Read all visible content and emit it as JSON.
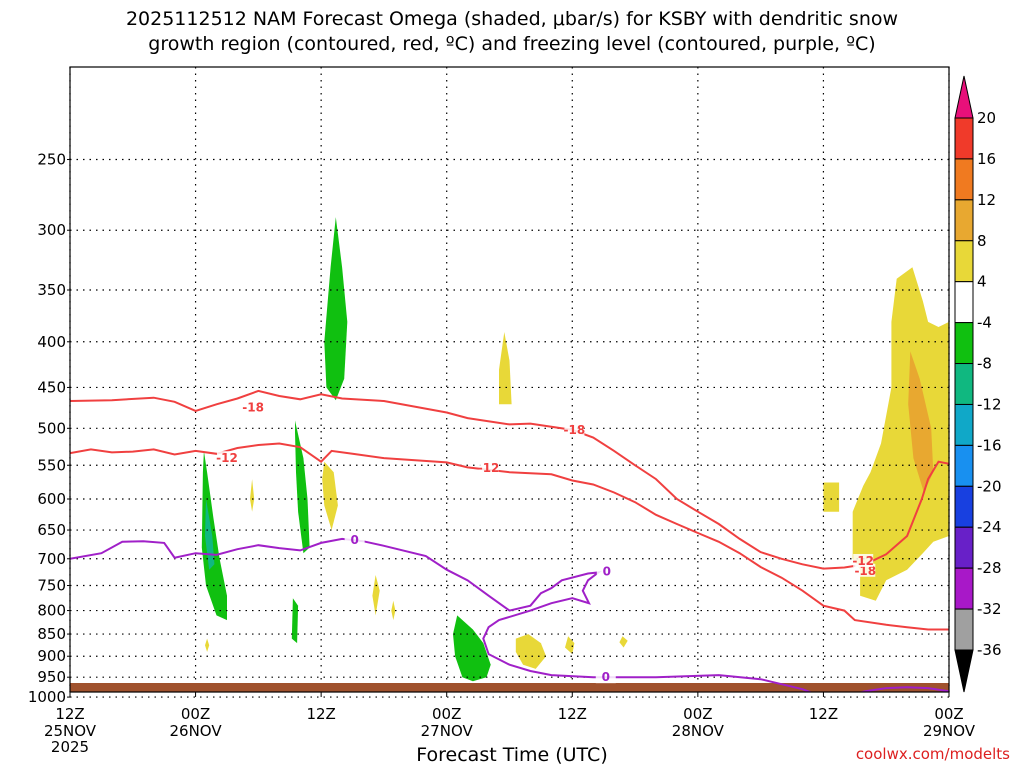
{
  "chart_data": {
    "type": "heatmap",
    "title_line1": "2025112512 NAM Forecast Omega (shaded, μbar/s) for KSBY with dendritic snow",
    "title_line2": "growth region (contoured, red, ºC) and freezing level (contoured, purple, ºC)",
    "xlabel": "Forecast Time (UTC)",
    "credit": "coolwx.com/modelts",
    "x_axis": {
      "unit": "hours since 2025-11-25 12Z",
      "range": [
        0,
        84
      ],
      "ticks": [
        {
          "hour": 0,
          "label1": "12Z",
          "label2": "25NOV",
          "label3": "2025"
        },
        {
          "hour": 12,
          "label1": "00Z",
          "label2": "26NOV"
        },
        {
          "hour": 24,
          "label1": "12Z",
          "label2": ""
        },
        {
          "hour": 36,
          "label1": "00Z",
          "label2": "27NOV"
        },
        {
          "hour": 48,
          "label1": "12Z",
          "label2": ""
        },
        {
          "hour": 60,
          "label1": "00Z",
          "label2": "28NOV"
        },
        {
          "hour": 72,
          "label1": "12Z",
          "label2": ""
        },
        {
          "hour": 84,
          "label1": "00Z",
          "label2": "29NOV"
        }
      ]
    },
    "y_axis": {
      "unit": "hPa",
      "ticks": [
        "250",
        "300",
        "350",
        "400",
        "450",
        "500",
        "550",
        "600",
        "650",
        "700",
        "750",
        "800",
        "850",
        "900",
        "950",
        "1000"
      ],
      "grid": "dotted"
    },
    "colorbar": {
      "labels": [
        "20",
        "16",
        "12",
        "8",
        "4",
        "-4",
        "-8",
        "-12",
        "-16",
        "-20",
        "-24",
        "-28",
        "-32",
        "-36"
      ],
      "colors": [
        "#e8107a",
        "#f03a2a",
        "#f07a20",
        "#e8a830",
        "#e8d838",
        "#ffffff",
        "#10c010",
        "#10b880",
        "#10a8c8",
        "#1890f0",
        "#1840e0",
        "#6820c8",
        "#a818c8",
        "#a0a0a0",
        "#000000"
      ]
    },
    "omega_regions": [
      {
        "color": "#10c010",
        "label": "upward motion -4 to -8",
        "points": [
          [
            25.4,
            290
          ],
          [
            26.0,
            330
          ],
          [
            26.5,
            380
          ],
          [
            26.2,
            440
          ],
          [
            25.4,
            465
          ],
          [
            24.5,
            450
          ],
          [
            24.3,
            400
          ],
          [
            24.9,
            330
          ]
        ]
      },
      {
        "color": "#10c010",
        "points": [
          [
            13.1,
            560
          ],
          [
            13.7,
            630
          ],
          [
            14.3,
            700
          ],
          [
            15.0,
            770
          ],
          [
            15.0,
            820
          ],
          [
            14.0,
            810
          ],
          [
            13.0,
            750
          ],
          [
            12.6,
            680
          ],
          [
            12.7,
            560
          ],
          [
            12.8,
            530
          ]
        ]
      },
      {
        "color": "#10b880",
        "points": [
          [
            13.0,
            600
          ],
          [
            13.6,
            660
          ],
          [
            13.8,
            710
          ],
          [
            13.3,
            720
          ],
          [
            12.9,
            660
          ]
        ]
      },
      {
        "color": "#10c010",
        "points": [
          [
            21.5,
            490
          ],
          [
            22.3,
            540
          ],
          [
            22.7,
            600
          ],
          [
            22.9,
            680
          ],
          [
            22.3,
            690
          ],
          [
            21.8,
            620
          ],
          [
            21.6,
            560
          ],
          [
            21.5,
            505
          ]
        ]
      },
      {
        "color": "#10c010",
        "points": [
          [
            21.3,
            775
          ],
          [
            21.8,
            790
          ],
          [
            21.7,
            870
          ],
          [
            21.2,
            860
          ]
        ]
      },
      {
        "color": "#10c010",
        "points": [
          [
            37.0,
            810
          ],
          [
            38.5,
            840
          ],
          [
            39.5,
            870
          ],
          [
            40.2,
            920
          ],
          [
            39.8,
            950
          ],
          [
            38.5,
            960
          ],
          [
            37.5,
            950
          ],
          [
            36.8,
            900
          ],
          [
            36.6,
            850
          ]
        ]
      },
      {
        "color": "#e8d838",
        "label": "sinking motion 4 to 8",
        "points": [
          [
            41.5,
            390
          ],
          [
            42.0,
            420
          ],
          [
            42.2,
            470
          ],
          [
            41.0,
            470
          ],
          [
            41.0,
            430
          ]
        ]
      },
      {
        "color": "#e8d838",
        "points": [
          [
            24.3,
            545
          ],
          [
            25.2,
            560
          ],
          [
            25.6,
            610
          ],
          [
            25.0,
            650
          ],
          [
            24.3,
            610
          ],
          [
            24.1,
            570
          ]
        ]
      },
      {
        "color": "#e8d838",
        "points": [
          [
            17.4,
            570
          ],
          [
            17.6,
            600
          ],
          [
            17.4,
            620
          ],
          [
            17.2,
            600
          ]
        ]
      },
      {
        "color": "#e8d838",
        "points": [
          [
            29.2,
            730
          ],
          [
            29.6,
            760
          ],
          [
            29.2,
            810
          ],
          [
            28.9,
            770
          ]
        ]
      },
      {
        "color": "#e8d838",
        "points": [
          [
            30.9,
            780
          ],
          [
            31.1,
            800
          ],
          [
            30.9,
            820
          ],
          [
            30.7,
            800
          ]
        ]
      },
      {
        "color": "#e8d838",
        "points": [
          [
            13.1,
            860
          ],
          [
            13.3,
            875
          ],
          [
            13.1,
            890
          ],
          [
            12.9,
            875
          ]
        ]
      },
      {
        "color": "#e8d838",
        "points": [
          [
            42.6,
            860
          ],
          [
            43.8,
            850
          ],
          [
            45.0,
            870
          ],
          [
            45.5,
            900
          ],
          [
            44.5,
            930
          ],
          [
            43.3,
            920
          ],
          [
            42.6,
            890
          ]
        ]
      },
      {
        "color": "#e8d838",
        "points": [
          [
            47.6,
            855
          ],
          [
            48.2,
            870
          ],
          [
            48.0,
            895
          ],
          [
            47.3,
            880
          ]
        ]
      },
      {
        "color": "#e8d838",
        "points": [
          [
            52.8,
            855
          ],
          [
            53.3,
            865
          ],
          [
            52.9,
            880
          ],
          [
            52.5,
            868
          ]
        ]
      },
      {
        "color": "#e8d838",
        "points": [
          [
            72.0,
            575
          ],
          [
            73.5,
            575
          ],
          [
            73.5,
            620
          ],
          [
            72.0,
            620
          ]
        ]
      },
      {
        "color": "#e8d838",
        "points": [
          [
            79.0,
            340
          ],
          [
            80.5,
            330
          ],
          [
            81.5,
            360
          ],
          [
            82.0,
            380
          ],
          [
            83.0,
            385
          ],
          [
            84.0,
            380
          ],
          [
            84.0,
            660
          ],
          [
            82.5,
            670
          ],
          [
            81.5,
            690
          ],
          [
            80.0,
            720
          ],
          [
            78.0,
            740
          ],
          [
            77.0,
            780
          ],
          [
            75.5,
            770
          ],
          [
            75.5,
            720
          ],
          [
            74.8,
            700
          ],
          [
            74.8,
            620
          ],
          [
            75.8,
            580
          ],
          [
            76.5,
            560
          ],
          [
            77.5,
            520
          ],
          [
            78.5,
            450
          ],
          [
            78.5,
            380
          ]
        ]
      },
      {
        "color": "#e8a830",
        "label": "sinking motion 8 to 12",
        "points": [
          [
            80.3,
            410
          ],
          [
            81.2,
            440
          ],
          [
            82.3,
            500
          ],
          [
            82.5,
            560
          ],
          [
            81.6,
            590
          ],
          [
            80.6,
            540
          ],
          [
            80.1,
            470
          ]
        ]
      }
    ],
    "contours": [
      {
        "name": "-18",
        "color": "#f04040",
        "label_at": [
          [
            17.5,
            474
          ],
          [
            48.2,
            502
          ],
          [
            76.0,
            722
          ]
        ],
        "points": [
          [
            0,
            466
          ],
          [
            4,
            465
          ],
          [
            8,
            462
          ],
          [
            10,
            467
          ],
          [
            12,
            478
          ],
          [
            14,
            470
          ],
          [
            16,
            463
          ],
          [
            18,
            454
          ],
          [
            20,
            460
          ],
          [
            22,
            464
          ],
          [
            24,
            458
          ],
          [
            26,
            463
          ],
          [
            30,
            466
          ],
          [
            36,
            480
          ],
          [
            38,
            487
          ],
          [
            42,
            495
          ],
          [
            44,
            494
          ],
          [
            48,
            502
          ],
          [
            50,
            512
          ],
          [
            52,
            530
          ],
          [
            54,
            550
          ],
          [
            56,
            570
          ],
          [
            58,
            600
          ],
          [
            60,
            620
          ],
          [
            62,
            640
          ],
          [
            64,
            665
          ],
          [
            66,
            688
          ],
          [
            68,
            700
          ],
          [
            70,
            710
          ],
          [
            72,
            718
          ],
          [
            74,
            716
          ],
          [
            76,
            710
          ],
          [
            78,
            692
          ],
          [
            80,
            660
          ],
          [
            81.4,
            600
          ],
          [
            82,
            570
          ],
          [
            83,
            545
          ],
          [
            84,
            548
          ]
        ]
      },
      {
        "name": "-12",
        "color": "#f04040",
        "label_at": [
          [
            15.0,
            540
          ],
          [
            40.0,
            554
          ],
          [
            75.8,
            704
          ]
        ],
        "points": [
          [
            0,
            533
          ],
          [
            2,
            528
          ],
          [
            4,
            532
          ],
          [
            6,
            531
          ],
          [
            8,
            528
          ],
          [
            10,
            535
          ],
          [
            12,
            530
          ],
          [
            14,
            534
          ],
          [
            16,
            526
          ],
          [
            18,
            522
          ],
          [
            20,
            520
          ],
          [
            22,
            525
          ],
          [
            24,
            545
          ],
          [
            25,
            530
          ],
          [
            27,
            534
          ],
          [
            30,
            540
          ],
          [
            36,
            546
          ],
          [
            38,
            553
          ],
          [
            42,
            560
          ],
          [
            46,
            563
          ],
          [
            48,
            572
          ],
          [
            50,
            578
          ],
          [
            52,
            590
          ],
          [
            54,
            605
          ],
          [
            56,
            625
          ],
          [
            58,
            640
          ],
          [
            60,
            655
          ],
          [
            62,
            670
          ],
          [
            64,
            690
          ],
          [
            66,
            715
          ],
          [
            68,
            735
          ],
          [
            70,
            760
          ],
          [
            72,
            790
          ],
          [
            74,
            800
          ],
          [
            75,
            820
          ],
          [
            78,
            830
          ],
          [
            80,
            835
          ],
          [
            82,
            840
          ],
          [
            84,
            840
          ]
        ]
      },
      {
        "name": "0",
        "color": "#a020c8",
        "label_at": [
          [
            27.2,
            667
          ],
          [
            51.3,
            723
          ],
          [
            51.2,
            950
          ]
        ],
        "points": [
          [
            0,
            700
          ],
          [
            3,
            690
          ],
          [
            5,
            670
          ],
          [
            7,
            669
          ],
          [
            9,
            672
          ],
          [
            10,
            698
          ],
          [
            12,
            690
          ],
          [
            14,
            693
          ],
          [
            16,
            683
          ],
          [
            18,
            676
          ],
          [
            20,
            681
          ],
          [
            22,
            685
          ],
          [
            24,
            672
          ],
          [
            26,
            665
          ],
          [
            28,
            669
          ],
          [
            30,
            677
          ],
          [
            34,
            695
          ],
          [
            36,
            720
          ],
          [
            38,
            740
          ],
          [
            40,
            770
          ],
          [
            42,
            800
          ],
          [
            44,
            790
          ],
          [
            45,
            765
          ],
          [
            46,
            755
          ],
          [
            47,
            740
          ],
          [
            49.5,
            727
          ],
          [
            50.5,
            725
          ],
          [
            49.5,
            740
          ],
          [
            49,
            760
          ],
          [
            49.6,
            785
          ],
          [
            48,
            775
          ],
          [
            46,
            785
          ],
          [
            44,
            800
          ],
          [
            41,
            820
          ],
          [
            40,
            835
          ],
          [
            39.5,
            860
          ],
          [
            40,
            895
          ],
          [
            42,
            920
          ],
          [
            44,
            935
          ],
          [
            46,
            945
          ],
          [
            50,
            950
          ],
          [
            56,
            950
          ],
          [
            62,
            945
          ],
          [
            66,
            955
          ],
          [
            70,
            980
          ],
          [
            72,
            1000
          ]
        ]
      },
      {
        "name": "0b",
        "color": "#a020c8",
        "points": [
          [
            74,
            1000
          ],
          [
            76,
            985
          ],
          [
            78,
            977
          ],
          [
            80,
            975
          ],
          [
            82,
            977
          ],
          [
            84,
            985
          ]
        ]
      }
    ]
  }
}
